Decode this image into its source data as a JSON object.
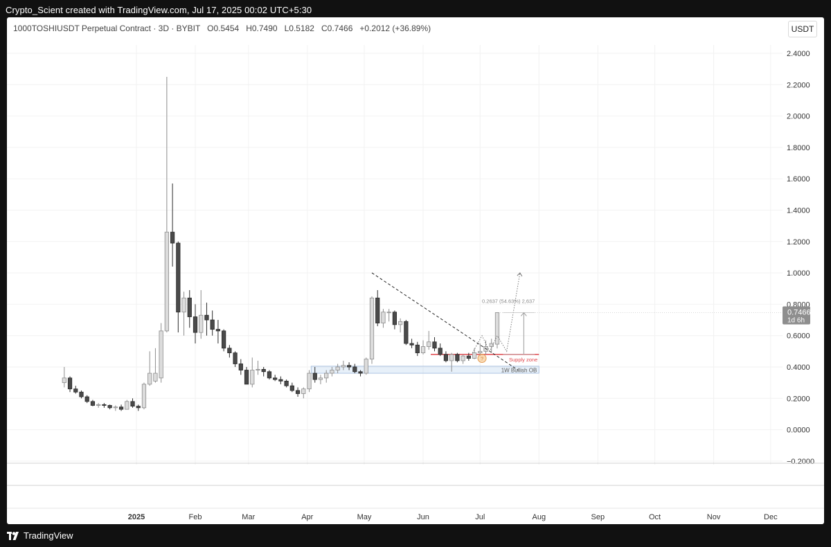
{
  "header": {
    "attribution": "Crypto_Scient created with TradingView.com, Jul 17, 2025 00:02 UTC+5:30"
  },
  "legend": {
    "symbol": "1000TOSHIUSDT Perpetual Contract · 3D · BYBIT",
    "open": "O0.5454",
    "high": "H0.7490",
    "low": "L0.5182",
    "close": "C0.7466",
    "change": "+0.2012 (+36.89%)"
  },
  "currency_button": "USDT",
  "price_tag": {
    "value": "0.7466",
    "countdown": "1d 6h"
  },
  "annotations": {
    "measure": "0.2637 (54.63%) 2,637",
    "supply_zone": "Supply zone",
    "ob": "1W Bullish OB"
  },
  "footer": {
    "brand": "TradingView"
  },
  "chart_data": {
    "type": "candlestick",
    "symbol": "1000TOSHIUSDT",
    "interval": "3D",
    "y_ticks": [
      2.4,
      2.2,
      2.0,
      1.8,
      1.6,
      1.4,
      1.2,
      1.0,
      0.8,
      0.6,
      0.4,
      0.2,
      0.0,
      -0.2
    ],
    "y_tick_labels": [
      "2.4000",
      "2.2000",
      "2.0000",
      "1.8000",
      "1.6000",
      "1.4000",
      "1.2000",
      "1.0000",
      "0.8000",
      "0.6000",
      "0.4000",
      "0.2000",
      "0.0000",
      "−0.2000"
    ],
    "x_labels": [
      {
        "label": "2025",
        "date": "2025-01-01",
        "bold": true
      },
      {
        "label": "Feb",
        "date": "2025-02-01"
      },
      {
        "label": "Mar",
        "date": "2025-03-01"
      },
      {
        "label": "Apr",
        "date": "2025-04-01"
      },
      {
        "label": "May",
        "date": "2025-05-01"
      },
      {
        "label": "Jun",
        "date": "2025-06-01"
      },
      {
        "label": "Jul",
        "date": "2025-07-01"
      },
      {
        "label": "Aug",
        "date": "2025-08-01"
      },
      {
        "label": "Sep",
        "date": "2025-09-01"
      },
      {
        "label": "Oct",
        "date": "2025-10-01"
      },
      {
        "label": "Nov",
        "date": "2025-11-01"
      },
      {
        "label": "Dec",
        "date": "2025-12-01"
      }
    ],
    "candles": [
      {
        "date": "2024-11-24",
        "o": 0.3,
        "h": 0.4,
        "l": 0.27,
        "c": 0.33
      },
      {
        "date": "2024-11-27",
        "o": 0.33,
        "h": 0.34,
        "l": 0.24,
        "c": 0.26
      },
      {
        "date": "2024-11-30",
        "o": 0.26,
        "h": 0.28,
        "l": 0.23,
        "c": 0.24
      },
      {
        "date": "2024-12-03",
        "o": 0.24,
        "h": 0.25,
        "l": 0.2,
        "c": 0.21
      },
      {
        "date": "2024-12-06",
        "o": 0.21,
        "h": 0.22,
        "l": 0.17,
        "c": 0.18
      },
      {
        "date": "2024-12-09",
        "o": 0.18,
        "h": 0.19,
        "l": 0.15,
        "c": 0.155
      },
      {
        "date": "2024-12-12",
        "o": 0.155,
        "h": 0.17,
        "l": 0.14,
        "c": 0.16
      },
      {
        "date": "2024-12-15",
        "o": 0.16,
        "h": 0.17,
        "l": 0.14,
        "c": 0.155
      },
      {
        "date": "2024-12-18",
        "o": 0.155,
        "h": 0.16,
        "l": 0.13,
        "c": 0.14
      },
      {
        "date": "2024-12-21",
        "o": 0.14,
        "h": 0.155,
        "l": 0.12,
        "c": 0.145
      },
      {
        "date": "2024-12-24",
        "o": 0.145,
        "h": 0.16,
        "l": 0.12,
        "c": 0.13
      },
      {
        "date": "2024-12-27",
        "o": 0.13,
        "h": 0.19,
        "l": 0.13,
        "c": 0.18
      },
      {
        "date": "2024-12-30",
        "o": 0.18,
        "h": 0.2,
        "l": 0.14,
        "c": 0.15
      },
      {
        "date": "2025-01-02",
        "o": 0.15,
        "h": 0.16,
        "l": 0.12,
        "c": 0.14
      },
      {
        "date": "2025-01-05",
        "o": 0.14,
        "h": 0.3,
        "l": 0.13,
        "c": 0.29
      },
      {
        "date": "2025-01-08",
        "o": 0.29,
        "h": 0.5,
        "l": 0.28,
        "c": 0.36
      },
      {
        "date": "2025-01-11",
        "o": 0.31,
        "h": 0.52,
        "l": 0.3,
        "c": 0.36
      },
      {
        "date": "2025-01-14",
        "o": 0.33,
        "h": 0.68,
        "l": 0.3,
        "c": 0.63
      },
      {
        "date": "2025-01-17",
        "o": 0.63,
        "h": 2.25,
        "l": 0.62,
        "c": 1.26
      },
      {
        "date": "2025-01-20",
        "o": 1.26,
        "h": 1.57,
        "l": 1.04,
        "c": 1.19
      },
      {
        "date": "2025-01-23",
        "o": 1.19,
        "h": 1.2,
        "l": 0.62,
        "c": 0.75
      },
      {
        "date": "2025-01-26",
        "o": 0.75,
        "h": 0.88,
        "l": 0.6,
        "c": 0.84
      },
      {
        "date": "2025-01-29",
        "o": 0.84,
        "h": 0.89,
        "l": 0.65,
        "c": 0.72
      },
      {
        "date": "2025-02-01",
        "o": 0.72,
        "h": 0.8,
        "l": 0.55,
        "c": 0.62
      },
      {
        "date": "2025-02-04",
        "o": 0.62,
        "h": 0.89,
        "l": 0.58,
        "c": 0.73
      },
      {
        "date": "2025-02-07",
        "o": 0.73,
        "h": 0.81,
        "l": 0.6,
        "c": 0.7
      },
      {
        "date": "2025-02-10",
        "o": 0.7,
        "h": 0.76,
        "l": 0.6,
        "c": 0.64
      },
      {
        "date": "2025-02-13",
        "o": 0.64,
        "h": 0.7,
        "l": 0.55,
        "c": 0.63
      },
      {
        "date": "2025-02-16",
        "o": 0.63,
        "h": 0.64,
        "l": 0.5,
        "c": 0.52
      },
      {
        "date": "2025-02-19",
        "o": 0.52,
        "h": 0.54,
        "l": 0.46,
        "c": 0.49
      },
      {
        "date": "2025-02-22",
        "o": 0.49,
        "h": 0.5,
        "l": 0.4,
        "c": 0.42
      },
      {
        "date": "2025-02-25",
        "o": 0.42,
        "h": 0.45,
        "l": 0.35,
        "c": 0.38
      },
      {
        "date": "2025-02-28",
        "o": 0.38,
        "h": 0.4,
        "l": 0.3,
        "c": 0.29
      },
      {
        "date": "2025-03-03",
        "o": 0.29,
        "h": 0.46,
        "l": 0.27,
        "c": 0.38
      },
      {
        "date": "2025-03-06",
        "o": 0.38,
        "h": 0.44,
        "l": 0.35,
        "c": 0.385
      },
      {
        "date": "2025-03-09",
        "o": 0.385,
        "h": 0.4,
        "l": 0.34,
        "c": 0.37
      },
      {
        "date": "2025-03-12",
        "o": 0.37,
        "h": 0.38,
        "l": 0.32,
        "c": 0.33
      },
      {
        "date": "2025-03-15",
        "o": 0.33,
        "h": 0.35,
        "l": 0.31,
        "c": 0.32
      },
      {
        "date": "2025-03-18",
        "o": 0.32,
        "h": 0.34,
        "l": 0.29,
        "c": 0.31
      },
      {
        "date": "2025-03-21",
        "o": 0.31,
        "h": 0.32,
        "l": 0.27,
        "c": 0.28
      },
      {
        "date": "2025-03-24",
        "o": 0.28,
        "h": 0.3,
        "l": 0.24,
        "c": 0.25
      },
      {
        "date": "2025-03-27",
        "o": 0.25,
        "h": 0.27,
        "l": 0.21,
        "c": 0.23
      },
      {
        "date": "2025-03-30",
        "o": 0.23,
        "h": 0.27,
        "l": 0.2,
        "c": 0.26
      },
      {
        "date": "2025-04-02",
        "o": 0.26,
        "h": 0.38,
        "l": 0.24,
        "c": 0.36
      },
      {
        "date": "2025-04-05",
        "o": 0.36,
        "h": 0.4,
        "l": 0.3,
        "c": 0.32
      },
      {
        "date": "2025-04-08",
        "o": 0.32,
        "h": 0.35,
        "l": 0.29,
        "c": 0.33
      },
      {
        "date": "2025-04-11",
        "o": 0.33,
        "h": 0.38,
        "l": 0.3,
        "c": 0.36
      },
      {
        "date": "2025-04-14",
        "o": 0.36,
        "h": 0.4,
        "l": 0.34,
        "c": 0.38
      },
      {
        "date": "2025-04-17",
        "o": 0.38,
        "h": 0.42,
        "l": 0.36,
        "c": 0.4
      },
      {
        "date": "2025-04-20",
        "o": 0.4,
        "h": 0.44,
        "l": 0.38,
        "c": 0.41
      },
      {
        "date": "2025-04-23",
        "o": 0.41,
        "h": 0.43,
        "l": 0.38,
        "c": 0.4
      },
      {
        "date": "2025-04-26",
        "o": 0.4,
        "h": 0.42,
        "l": 0.36,
        "c": 0.37
      },
      {
        "date": "2025-04-29",
        "o": 0.37,
        "h": 0.38,
        "l": 0.34,
        "c": 0.36
      },
      {
        "date": "2025-05-02",
        "o": 0.36,
        "h": 0.46,
        "l": 0.35,
        "c": 0.45
      },
      {
        "date": "2025-05-05",
        "o": 0.45,
        "h": 0.85,
        "l": 0.42,
        "c": 0.84
      },
      {
        "date": "2025-05-08",
        "o": 0.84,
        "h": 0.89,
        "l": 0.66,
        "c": 0.68
      },
      {
        "date": "2025-05-11",
        "o": 0.68,
        "h": 0.77,
        "l": 0.65,
        "c": 0.75
      },
      {
        "date": "2025-05-14",
        "o": 0.75,
        "h": 0.77,
        "l": 0.69,
        "c": 0.75
      },
      {
        "date": "2025-05-17",
        "o": 0.75,
        "h": 0.76,
        "l": 0.64,
        "c": 0.67
      },
      {
        "date": "2025-05-20",
        "o": 0.67,
        "h": 0.71,
        "l": 0.62,
        "c": 0.69
      },
      {
        "date": "2025-05-23",
        "o": 0.69,
        "h": 0.7,
        "l": 0.54,
        "c": 0.55
      },
      {
        "date": "2025-05-26",
        "o": 0.55,
        "h": 0.58,
        "l": 0.52,
        "c": 0.54
      },
      {
        "date": "2025-05-29",
        "o": 0.54,
        "h": 0.56,
        "l": 0.47,
        "c": 0.49
      },
      {
        "date": "2025-06-01",
        "o": 0.49,
        "h": 0.57,
        "l": 0.48,
        "c": 0.53
      },
      {
        "date": "2025-06-04",
        "o": 0.53,
        "h": 0.63,
        "l": 0.51,
        "c": 0.56
      },
      {
        "date": "2025-06-07",
        "o": 0.56,
        "h": 0.59,
        "l": 0.5,
        "c": 0.52
      },
      {
        "date": "2025-06-10",
        "o": 0.52,
        "h": 0.55,
        "l": 0.47,
        "c": 0.48
      },
      {
        "date": "2025-06-13",
        "o": 0.48,
        "h": 0.5,
        "l": 0.43,
        "c": 0.44
      },
      {
        "date": "2025-06-16",
        "o": 0.44,
        "h": 0.49,
        "l": 0.37,
        "c": 0.48
      },
      {
        "date": "2025-06-19",
        "o": 0.48,
        "h": 0.49,
        "l": 0.43,
        "c": 0.44
      },
      {
        "date": "2025-06-22",
        "o": 0.44,
        "h": 0.48,
        "l": 0.42,
        "c": 0.47
      },
      {
        "date": "2025-06-25",
        "o": 0.47,
        "h": 0.49,
        "l": 0.44,
        "c": 0.455
      },
      {
        "date": "2025-06-28",
        "o": 0.455,
        "h": 0.52,
        "l": 0.45,
        "c": 0.49
      },
      {
        "date": "2025-07-01",
        "o": 0.49,
        "h": 0.55,
        "l": 0.47,
        "c": 0.5
      },
      {
        "date": "2025-07-04",
        "o": 0.5,
        "h": 0.57,
        "l": 0.48,
        "c": 0.53
      },
      {
        "date": "2025-07-07",
        "o": 0.53,
        "h": 0.58,
        "l": 0.49,
        "c": 0.55
      },
      {
        "date": "2025-07-10",
        "o": 0.5454,
        "h": 0.749,
        "l": 0.5182,
        "c": 0.7466
      }
    ],
    "zones": [
      {
        "label": "1W Bullish OB",
        "from_date": "2025-04-03",
        "to_date": "2025-08-01",
        "y_low": 0.36,
        "y_high": 0.405
      },
      {
        "label": "Supply zone",
        "from_date": "2025-06-05",
        "to_date": "2025-08-01",
        "y": 0.48
      }
    ],
    "trendline": [
      {
        "date": "2025-05-05",
        "y": 1.0
      },
      {
        "date": "2025-07-21",
        "y": 0.38
      }
    ],
    "projection": [
      {
        "date": "2025-06-27",
        "y": 0.49
      },
      {
        "date": "2025-07-02",
        "y": 0.6
      },
      {
        "date": "2025-07-06",
        "y": 0.5
      },
      {
        "date": "2025-07-10",
        "y": 0.6
      },
      {
        "date": "2025-07-15",
        "y": 0.5
      },
      {
        "date": "2025-07-22",
        "y": 1.0
      }
    ],
    "measure": {
      "date": "2025-07-24",
      "from": 0.48,
      "to": 0.7466
    },
    "last_price": 0.7466
  }
}
